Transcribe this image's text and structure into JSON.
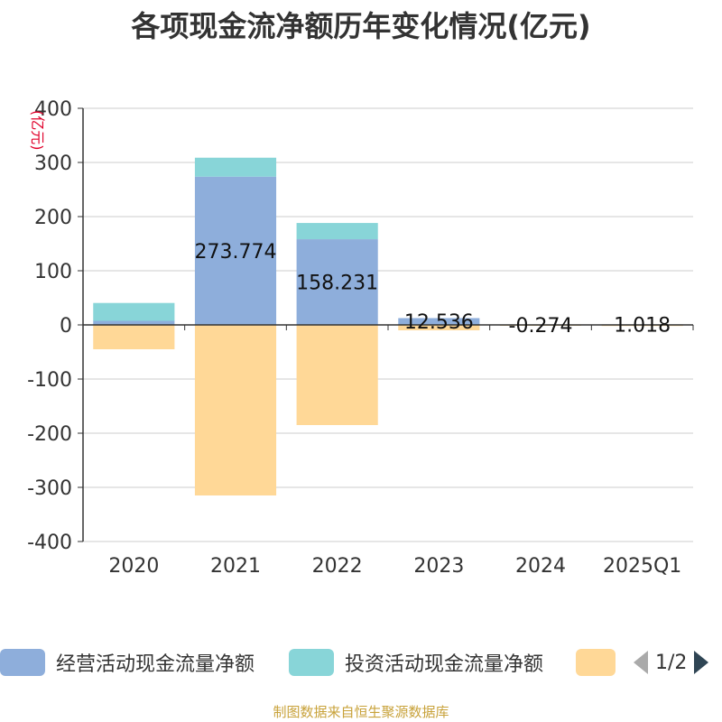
{
  "chart_data": {
    "type": "bar",
    "title": "各项现金流净额历年变化情况(亿元)",
    "ylabel": "(亿元)",
    "ylim": [
      -400,
      400
    ],
    "yticks": [
      400,
      300,
      200,
      100,
      0,
      -100,
      -200,
      -300,
      -400
    ],
    "grid": true,
    "stacked": true,
    "categories": [
      "2020",
      "2021",
      "2022",
      "2023",
      "2024",
      "2025Q1"
    ],
    "series": [
      {
        "name": "经营活动现金流量净额",
        "color": "#8eaedb",
        "values": [
          7.5,
          273.774,
          158.231,
          12.536,
          -0.274,
          1.018
        ],
        "labels": [
          "",
          "273.774",
          "158.231",
          "12.536",
          "-0.274",
          "1.018"
        ]
      },
      {
        "name": "投资活动现金流量净额",
        "color": "#88d5d8",
        "values": [
          33,
          35,
          30,
          0,
          0,
          0
        ]
      },
      {
        "name": "",
        "color": "#ffd897",
        "values": [
          -45,
          -315,
          -185,
          -10,
          -1,
          -2
        ]
      }
    ],
    "legend_position": "bottom"
  },
  "legend": {
    "items": [
      {
        "label": "经营活动现金流量净额",
        "color": "#8eaedb"
      },
      {
        "label": "投资活动现金流量净额",
        "color": "#88d5d8"
      },
      {
        "label": "",
        "color": "#ffd897"
      }
    ],
    "page_indicator": "1/2"
  },
  "footer": "制图数据来自恒生聚源数据库",
  "colors": {
    "axis": "#333333",
    "grid": "#cccccc",
    "ylabel": "#e0002a",
    "prev_arrow": "#aaaaaa",
    "next_arrow": "#2f4554"
  }
}
